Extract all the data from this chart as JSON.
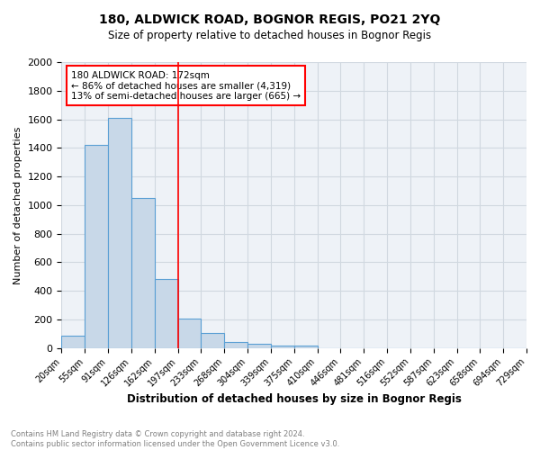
{
  "title1": "180, ALDWICK ROAD, BOGNOR REGIS, PO21 2YQ",
  "title2": "Size of property relative to detached houses in Bognor Regis",
  "xlabel": "Distribution of detached houses by size in Bognor Regis",
  "ylabel": "Number of detached properties",
  "footnote1": "Contains HM Land Registry data © Crown copyright and database right 2024.",
  "footnote2": "Contains public sector information licensed under the Open Government Licence v3.0.",
  "tick_labels": [
    "20sqm",
    "55sqm",
    "91sqm",
    "126sqm",
    "162sqm",
    "197sqm",
    "233sqm",
    "268sqm",
    "304sqm",
    "339sqm",
    "375sqm",
    "410sqm",
    "446sqm",
    "481sqm",
    "516sqm",
    "552sqm",
    "587sqm",
    "623sqm",
    "658sqm",
    "694sqm",
    "729sqm"
  ],
  "values": [
    85,
    1420,
    1610,
    1050,
    480,
    205,
    105,
    40,
    28,
    20,
    18,
    0,
    0,
    0,
    0,
    0,
    0,
    0,
    0,
    0
  ],
  "bar_color": "#c8d8e8",
  "bar_edge_color": "#5a9fd4",
  "grid_color": "#d0d8e0",
  "background_color": "#eef2f7",
  "red_line_x": 4.5,
  "annotation_text": "180 ALDWICK ROAD: 172sqm\n← 86% of detached houses are smaller (4,319)\n13% of semi-detached houses are larger (665) →",
  "ylim": [
    0,
    2000
  ],
  "yticks": [
    0,
    200,
    400,
    600,
    800,
    1000,
    1200,
    1400,
    1600,
    1800,
    2000
  ]
}
